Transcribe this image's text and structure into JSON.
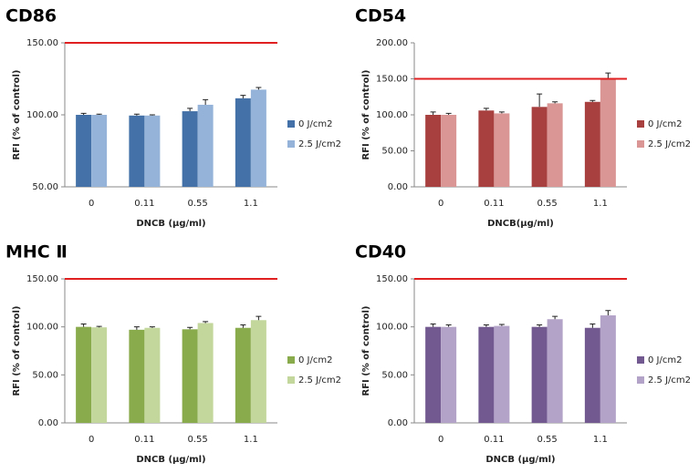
{
  "chart_data": [
    {
      "type": "bar",
      "title": "CD86",
      "x_label": "DNCB (μg/ml)",
      "y_label": "RFI (% of control)",
      "categories": [
        "0",
        "0.11",
        "0.55",
        "1.1"
      ],
      "series": [
        {
          "name": "0 J/cm2",
          "color": "#4472a8",
          "values": [
            100,
            99.5,
            102.5,
            111.5
          ],
          "errors": [
            1,
            1,
            2,
            2
          ]
        },
        {
          "name": "2.5 J/cm2",
          "color": "#95b3d9",
          "values": [
            100,
            99.5,
            107,
            117.5
          ],
          "errors": [
            0.5,
            0.5,
            3.5,
            1.5
          ]
        }
      ],
      "ylim": [
        50,
        150
      ],
      "yticks": [
        {
          "value": 50,
          "label": "50.00"
        },
        {
          "value": 100,
          "label": "100.00"
        },
        {
          "value": 150,
          "label": "150.00"
        }
      ],
      "reference_line": {
        "value": 150,
        "color": "#e02020"
      }
    },
    {
      "type": "bar",
      "title": "CD54",
      "x_label": "DNCB(μg/ml)",
      "y_label": "RFI (% of control)",
      "categories": [
        "0",
        "0.11",
        "0.55",
        "1.1"
      ],
      "series": [
        {
          "name": "0 J/cm2",
          "color": "#a94040",
          "values": [
            100,
            106,
            111,
            118
          ],
          "errors": [
            4,
            3,
            18,
            2
          ]
        },
        {
          "name": "2.5 J/cm2",
          "color": "#d99694",
          "values": [
            100,
            102,
            116,
            150
          ],
          "errors": [
            2,
            2,
            2,
            8
          ]
        }
      ],
      "ylim": [
        0,
        200
      ],
      "yticks": [
        {
          "value": 0,
          "label": "0.00"
        },
        {
          "value": 50,
          "label": "50.00"
        },
        {
          "value": 100,
          "label": "100.00"
        },
        {
          "value": 150,
          "label": "150.00"
        },
        {
          "value": 200,
          "label": "200.00"
        }
      ],
      "reference_line": {
        "value": 150,
        "color": "#e02020"
      }
    },
    {
      "type": "bar",
      "title": "MHC Ⅱ",
      "x_label": "DNCB (μg/ml)",
      "y_label": "RFI (% of control)",
      "categories": [
        "0",
        "0.11",
        "0.55",
        "1.1"
      ],
      "series": [
        {
          "name": "0 J/cm2",
          "color": "#8aab4c",
          "values": [
            100,
            97,
            97.5,
            99
          ],
          "errors": [
            3,
            3,
            2,
            3
          ]
        },
        {
          "name": "2.5 J/cm2",
          "color": "#c3d69b",
          "values": [
            99.5,
            99,
            104,
            107
          ],
          "errors": [
            1,
            1,
            1.5,
            4
          ]
        }
      ],
      "ylim": [
        0,
        150
      ],
      "yticks": [
        {
          "value": 0,
          "label": "0.00"
        },
        {
          "value": 50,
          "label": "50.00"
        },
        {
          "value": 100,
          "label": "100.00"
        },
        {
          "value": 150,
          "label": "150.00"
        }
      ],
      "reference_line": {
        "value": 150,
        "color": "#e02020"
      }
    },
    {
      "type": "bar",
      "title": "CD40",
      "x_label": "DNCB (μg/ml)",
      "y_label": "RFI (% of control)",
      "categories": [
        "0",
        "0.11",
        "0.55",
        "1.1"
      ],
      "series": [
        {
          "name": "0 J/cm2",
          "color": "#725a91",
          "values": [
            100,
            100,
            100,
            99
          ],
          "errors": [
            3,
            2,
            2,
            4
          ]
        },
        {
          "name": "2.5 J/cm2",
          "color": "#b3a3c8",
          "values": [
            100,
            101,
            108,
            112
          ],
          "errors": [
            2,
            1.5,
            3,
            5
          ]
        }
      ],
      "ylim": [
        0,
        150
      ],
      "yticks": [
        {
          "value": 0,
          "label": "0.00"
        },
        {
          "value": 50,
          "label": "50.00"
        },
        {
          "value": 100,
          "label": "100.00"
        },
        {
          "value": 150,
          "label": "150.00"
        }
      ],
      "reference_line": {
        "value": 150,
        "color": "#e02020"
      }
    }
  ]
}
